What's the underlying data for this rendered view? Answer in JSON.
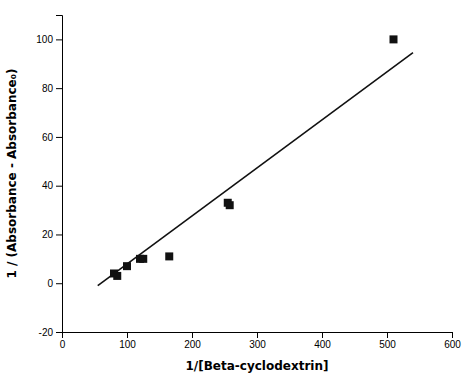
{
  "chart_data": {
    "type": "scatter",
    "xlabel": "1/[Beta-cyclodextrin]",
    "ylabel": "1 / (Absorbance - Absorbance₀)",
    "series": [
      {
        "type": "scatter",
        "x": [
          80,
          85,
          100,
          120,
          125,
          165,
          255,
          258,
          510
        ],
        "values": [
          4,
          3,
          7,
          10,
          10,
          11,
          33,
          32,
          100
        ],
        "color": "#111111",
        "marker": "square"
      },
      {
        "type": "line",
        "x": [
          55,
          540
        ],
        "values": [
          -0.965,
          94.58
        ],
        "color": "#111111",
        "line_style": "solid"
      }
    ],
    "xlim": [
      0,
      600
    ],
    "ylim": [
      -20,
      110
    ],
    "xticks": [
      0,
      100,
      200,
      300,
      400,
      500,
      600
    ],
    "yticks": [
      -20,
      0,
      20,
      40,
      60,
      80,
      100
    ]
  }
}
